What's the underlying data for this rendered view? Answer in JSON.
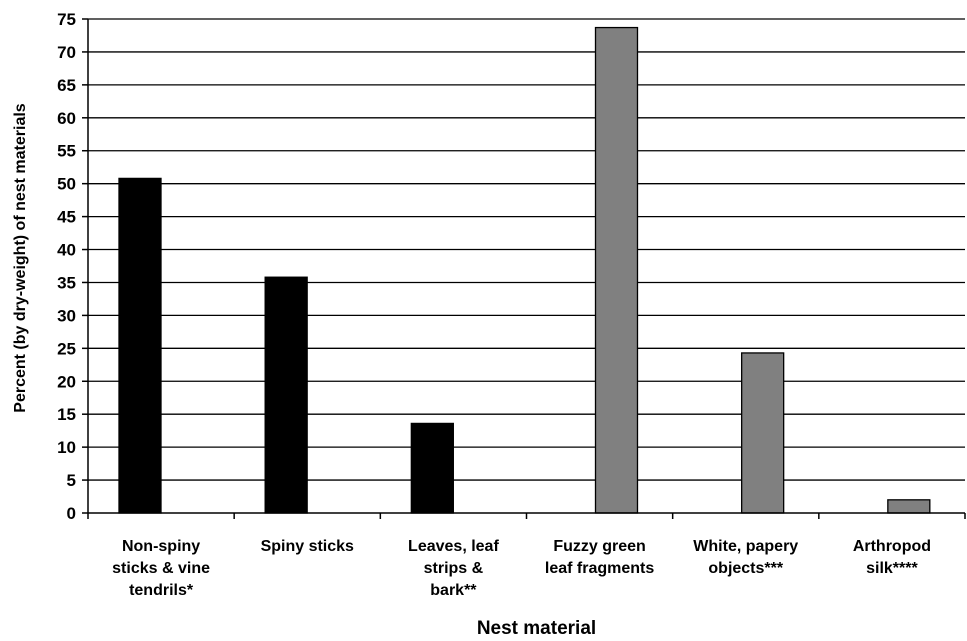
{
  "chart_data": {
    "type": "bar",
    "categories": [
      [
        "Non-spiny",
        "sticks & vine",
        "tendrils*"
      ],
      [
        "Spiny sticks"
      ],
      [
        "Leaves, leaf",
        "strips &",
        "bark**"
      ],
      [
        "Fuzzy green",
        "leaf fragments"
      ],
      [
        "White, papery",
        "objects***"
      ],
      [
        "Arthropod",
        "silk****"
      ]
    ],
    "series": [
      {
        "values": [
          50.8,
          35.8,
          13.6,
          null,
          null,
          null
        ],
        "color": "#000000"
      },
      {
        "values": [
          null,
          null,
          null,
          73.7,
          24.3,
          2.0
        ],
        "color": "#808080"
      }
    ],
    "xlabel": "Nest material",
    "ylabel": "Percent (by dry-weight) of nest materials",
    "ylim": [
      0,
      75
    ],
    "yticks": [
      0,
      5,
      10,
      15,
      20,
      25,
      30,
      35,
      40,
      45,
      50,
      55,
      60,
      65,
      70,
      75
    ],
    "grid": true
  }
}
